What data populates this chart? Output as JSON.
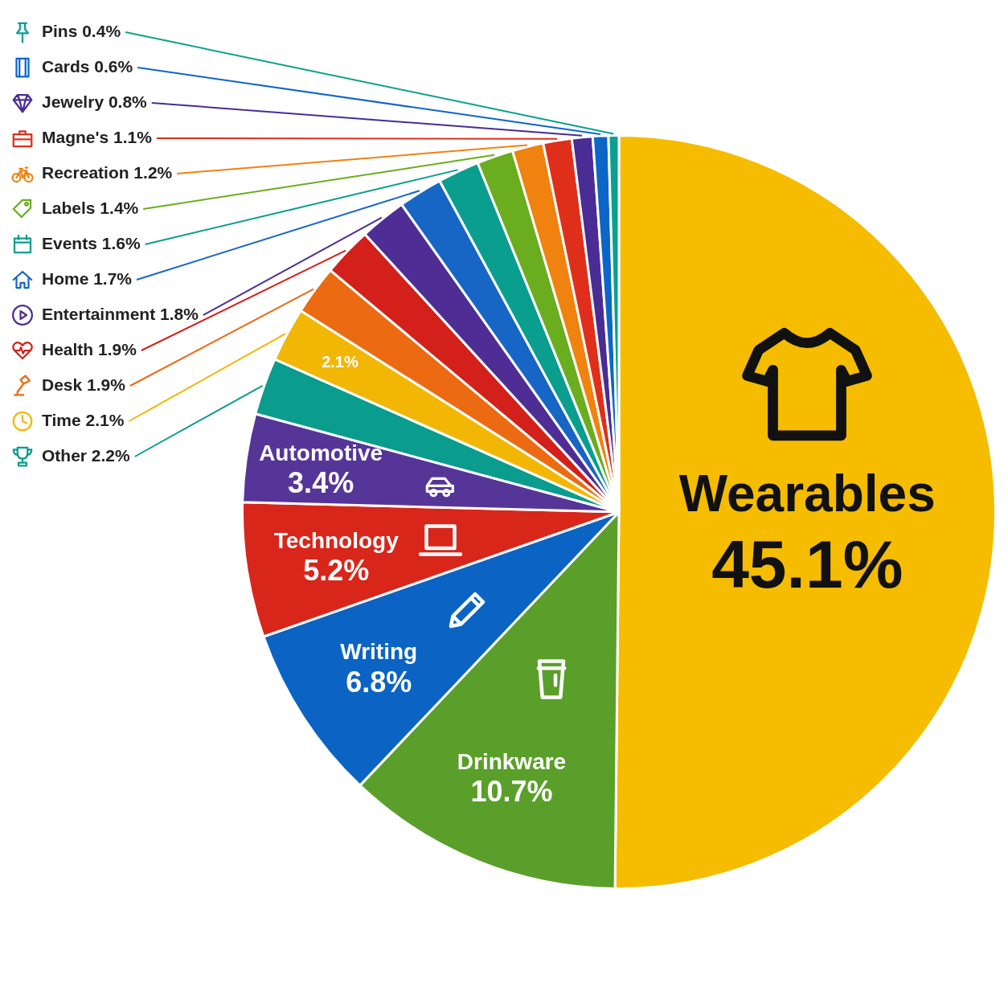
{
  "chart_data": {
    "type": "pie",
    "categories": [
      "Wearables",
      "Drinkware",
      "Writing",
      "Technology",
      "Automotive",
      "Other",
      "Time",
      "Desk",
      "Health",
      "Entertainment",
      "Home",
      "Events",
      "Labels",
      "Recreation",
      "Magne's",
      "Jewelry",
      "Cards",
      "Pins"
    ],
    "values": [
      45.1,
      10.7,
      6.8,
      5.2,
      3.4,
      2.2,
      2.1,
      1.9,
      1.9,
      1.8,
      1.7,
      1.6,
      1.4,
      1.2,
      1.1,
      0.8,
      0.6,
      0.4
    ],
    "value_labels": [
      "45.1%",
      "10.7%",
      "6.8%",
      "5.2%",
      "3.4%",
      "2.2%",
      "2.1%",
      "1.9%",
      "1.9%",
      "1.8%",
      "1.7%",
      "1.6%",
      "1.4%",
      "1.2%",
      "1.1%",
      "0.8%",
      "0.6%",
      "0.4%"
    ],
    "colors": [
      "#f5bc00",
      "#5a9f2a",
      "#0b63c4",
      "#d8261b",
      "#563598",
      "#0a9c8c",
      "#f2b705",
      "#ec6a12",
      "#d3201a",
      "#4e2e94",
      "#1766c6",
      "#0a9e8e",
      "#6aad1e",
      "#f0820f",
      "#df2f1b",
      "#4a2c95",
      "#0b66c8",
      "#0aa08f"
    ],
    "annotations": [
      "2.1%"
    ],
    "legend": "left"
  }
}
